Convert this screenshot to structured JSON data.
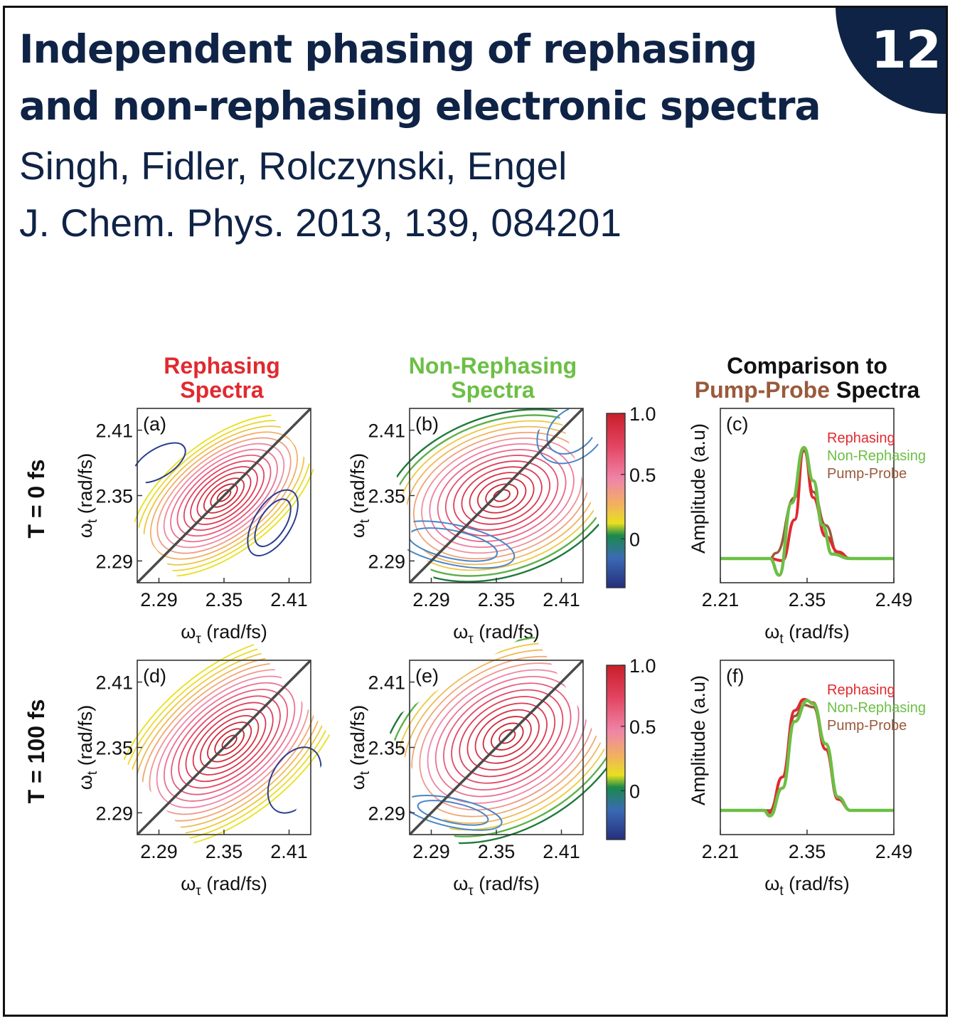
{
  "header": {
    "title_line1": "Independent phasing of rephasing",
    "title_line2": "and non-rephasing electronic spectra",
    "authors": "Singh, Fidler, Rolczynski, Engel",
    "journal": "J. Chem. Phys. 2013, 139, 084201",
    "badge": "12"
  },
  "columns": {
    "rephasing": [
      "Rephasing",
      "Spectra"
    ],
    "nonrephasing": [
      "Non-Rephasing",
      "Spectra"
    ],
    "comparison_line1": "Comparison to",
    "comparison_pp": "Pump-Probe",
    "comparison_sp": " Spectra"
  },
  "rows": [
    "T = 0 fs",
    "T = 100 fs"
  ],
  "colorbar": {
    "ticks": [
      "1.0",
      "0.5",
      "0"
    ]
  },
  "colors": {
    "navy": "#0f2346",
    "red": "#e02a2f",
    "green": "#6cbf45",
    "brown": "#9a5a3c",
    "diag": "#4a4a4a"
  },
  "chart_data": [
    {
      "type": "contour",
      "panel": "(a)",
      "title": "Rephasing Spectra, T = 0 fs",
      "xlabel": "ω_τ (rad/fs)",
      "ylabel": "ω_t (rad/fs)",
      "xticks": [
        "2.29",
        "2.35",
        "2.41"
      ],
      "yticks": [
        "2.41",
        "2.35",
        "2.29"
      ],
      "xlim": [
        2.27,
        2.43
      ],
      "ylim": [
        2.27,
        2.43
      ],
      "peak": {
        "x": 2.35,
        "y": 2.35,
        "value": 1.0
      },
      "negative_peaks": [
        {
          "x": 2.395,
          "y": 2.325
        },
        {
          "x": 2.29,
          "y": 2.38
        }
      ]
    },
    {
      "type": "contour",
      "panel": "(b)",
      "title": "Non-Rephasing Spectra, T = 0 fs",
      "xlabel": "ω_τ (rad/fs)",
      "ylabel": "ω_t (rad/fs)",
      "xticks": [
        "2.29",
        "2.35",
        "2.41"
      ],
      "yticks": [
        "2.41",
        "2.35",
        "2.29"
      ],
      "xlim": [
        2.27,
        2.43
      ],
      "ylim": [
        2.27,
        2.43
      ],
      "peak": {
        "x": 2.355,
        "y": 2.35,
        "value": 1.0
      },
      "negative_peaks": [
        {
          "x": 2.31,
          "y": 2.305
        },
        {
          "x": 2.42,
          "y": 2.41
        }
      ]
    },
    {
      "type": "line",
      "panel": "(c)",
      "title": "Comparison to Pump-Probe Spectra, T = 0 fs",
      "xlabel": "ω_t (rad/fs)",
      "ylabel": "Amplitude (a.u)",
      "xticks": [
        "2.21",
        "2.35",
        "2.49"
      ],
      "xlim": [
        2.21,
        2.49
      ],
      "series": [
        {
          "name": "Rephasing",
          "x": [
            2.21,
            2.29,
            2.31,
            2.33,
            2.345,
            2.36,
            2.38,
            2.4,
            2.42,
            2.49
          ],
          "values": [
            0,
            0,
            -0.02,
            0.35,
            1.0,
            0.55,
            0.2,
            0.06,
            0,
            0
          ]
        },
        {
          "name": "Non-Rephasing",
          "x": [
            2.21,
            2.29,
            2.305,
            2.325,
            2.345,
            2.36,
            2.375,
            2.39,
            2.42,
            2.49
          ],
          "values": [
            0,
            0,
            -0.15,
            0.5,
            1.0,
            0.7,
            0.3,
            0.04,
            0,
            0
          ]
        },
        {
          "name": "Pump-Probe",
          "x": [
            2.21,
            2.29,
            2.3,
            2.33,
            2.345,
            2.36,
            2.38,
            2.4,
            2.42,
            2.49
          ],
          "values": [
            0,
            0,
            0.05,
            0.55,
            0.97,
            0.6,
            0.3,
            0.04,
            0,
            0
          ]
        }
      ]
    },
    {
      "type": "contour",
      "panel": "(d)",
      "title": "Rephasing Spectra, T = 100 fs",
      "xlabel": "ω_τ (rad/fs)",
      "ylabel": "ω_t (rad/fs)",
      "xticks": [
        "2.29",
        "2.35",
        "2.41"
      ],
      "yticks": [
        "2.41",
        "2.35",
        "2.29"
      ],
      "xlim": [
        2.27,
        2.43
      ],
      "ylim": [
        2.27,
        2.43
      ],
      "peak": {
        "x": 2.355,
        "y": 2.355,
        "value": 1.0
      },
      "negative_peaks": [
        {
          "x": 2.415,
          "y": 2.32
        }
      ]
    },
    {
      "type": "contour",
      "panel": "(e)",
      "title": "Non-Rephasing Spectra, T = 100 fs",
      "xlabel": "ω_τ (rad/fs)",
      "ylabel": "ω_t (rad/fs)",
      "xticks": [
        "2.29",
        "2.35",
        "2.41"
      ],
      "yticks": [
        "2.41",
        "2.35",
        "2.29"
      ],
      "xlim": [
        2.27,
        2.43
      ],
      "ylim": [
        2.27,
        2.43
      ],
      "peak": {
        "x": 2.36,
        "y": 2.36,
        "value": 1.0
      },
      "negative_peaks": [
        {
          "x": 2.31,
          "y": 2.29
        }
      ]
    },
    {
      "type": "line",
      "panel": "(f)",
      "title": "Comparison to Pump-Probe Spectra, T = 100 fs",
      "xlabel": "ω_t (rad/fs)",
      "ylabel": "Amplitude (a.u)",
      "xticks": [
        "2.21",
        "2.35",
        "2.49"
      ],
      "xlim": [
        2.21,
        2.49
      ],
      "series": [
        {
          "name": "Rephasing",
          "x": [
            2.21,
            2.28,
            2.29,
            2.31,
            2.33,
            2.345,
            2.36,
            2.38,
            2.4,
            2.42,
            2.49
          ],
          "values": [
            0,
            0,
            -0.02,
            0.3,
            0.9,
            1.0,
            0.97,
            0.55,
            0.1,
            0,
            0
          ]
        },
        {
          "name": "Non-Rephasing",
          "x": [
            2.21,
            2.28,
            2.29,
            2.31,
            2.33,
            2.35,
            2.36,
            2.38,
            2.4,
            2.42,
            2.49
          ],
          "values": [
            0,
            0,
            -0.05,
            0.2,
            0.8,
            0.99,
            0.96,
            0.6,
            0.12,
            0,
            0
          ]
        },
        {
          "name": "Pump-Probe",
          "x": [
            2.21,
            2.28,
            2.29,
            2.31,
            2.33,
            2.345,
            2.36,
            2.38,
            2.4,
            2.42,
            2.49
          ],
          "values": [
            0,
            0,
            0,
            0.3,
            0.85,
            0.95,
            0.93,
            0.55,
            0.1,
            0,
            0
          ]
        }
      ]
    }
  ]
}
